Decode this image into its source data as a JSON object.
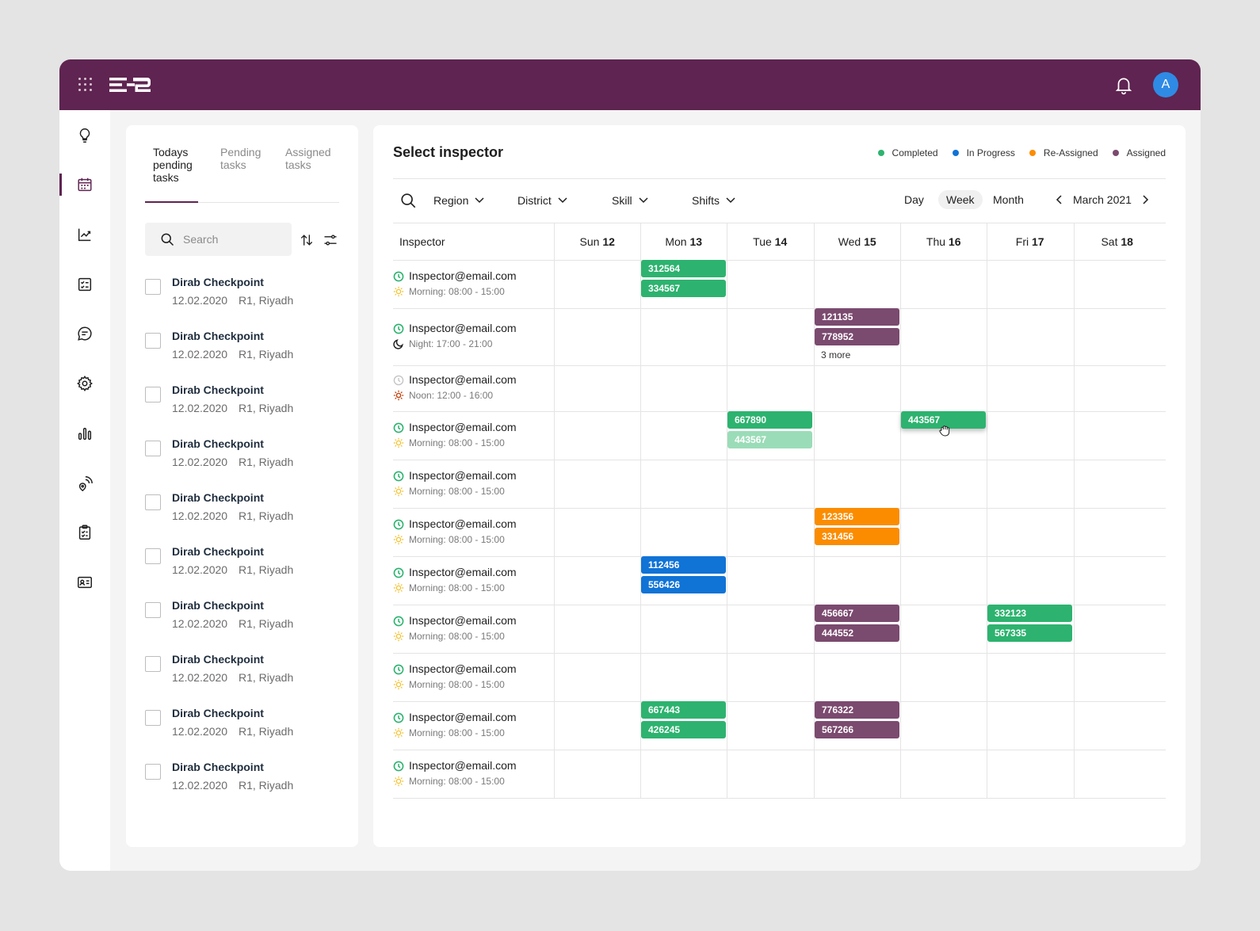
{
  "header": {
    "logo": "ERP",
    "avatar_initial": "A"
  },
  "sidebar": {
    "items": [
      {
        "name": "ideas",
        "icon": "lightbulb-icon"
      },
      {
        "name": "calendar",
        "icon": "calendar-icon",
        "active": true
      },
      {
        "name": "analytics",
        "icon": "trend-chart-icon"
      },
      {
        "name": "checklist",
        "icon": "checklist-icon"
      },
      {
        "name": "messages",
        "icon": "chat-icon"
      },
      {
        "name": "settings",
        "icon": "gear-icon"
      },
      {
        "name": "reports",
        "icon": "bar-chart-icon"
      },
      {
        "name": "tracking",
        "icon": "location-signal-icon"
      },
      {
        "name": "tasks",
        "icon": "clipboard-icon"
      },
      {
        "name": "id-cards",
        "icon": "id-card-icon"
      }
    ]
  },
  "left_panel": {
    "tabs": [
      {
        "label_lines": [
          "Todays",
          "pending",
          "tasks"
        ]
      },
      {
        "label_lines": [
          "Pending",
          "tasks"
        ]
      },
      {
        "label_lines": [
          "Assigned",
          "tasks"
        ]
      }
    ],
    "search_placeholder": "Search",
    "tasks": [
      {
        "title": "Dirab Checkpoint",
        "date": "12.02.2020",
        "location": "R1, Riyadh"
      },
      {
        "title": "Dirab Checkpoint",
        "date": "12.02.2020",
        "location": "R1, Riyadh"
      },
      {
        "title": "Dirab Checkpoint",
        "date": "12.02.2020",
        "location": "R1, Riyadh"
      },
      {
        "title": "Dirab Checkpoint",
        "date": "12.02.2020",
        "location": "R1, Riyadh"
      },
      {
        "title": "Dirab Checkpoint",
        "date": "12.02.2020",
        "location": "R1, Riyadh"
      },
      {
        "title": "Dirab Checkpoint",
        "date": "12.02.2020",
        "location": "R1, Riyadh"
      },
      {
        "title": "Dirab Checkpoint",
        "date": "12.02.2020",
        "location": "R1, Riyadh"
      },
      {
        "title": "Dirab Checkpoint",
        "date": "12.02.2020",
        "location": "R1, Riyadh"
      },
      {
        "title": "Dirab Checkpoint",
        "date": "12.02.2020",
        "location": "R1, Riyadh"
      },
      {
        "title": "Dirab Checkpoint",
        "date": "12.02.2020",
        "location": "R1, Riyadh"
      }
    ]
  },
  "main": {
    "title": "Select inspector",
    "legend": [
      {
        "label": "Completed",
        "color": "#2db36f"
      },
      {
        "label": "In Progress",
        "color": "#1073d6"
      },
      {
        "label": "Re-Assigned",
        "color": "#fb8c00"
      },
      {
        "label": "Assigned",
        "color": "#7b4a6f"
      }
    ],
    "filters": {
      "region": "Region",
      "district": "District",
      "skill": "Skill",
      "shifts": "Shifts"
    },
    "views": {
      "day": "Day",
      "week": "Week",
      "month": "Month",
      "active": "Week"
    },
    "period": "March 2021",
    "columns": {
      "inspector": "Inspector",
      "days": [
        {
          "name": "Sun",
          "num": "12"
        },
        {
          "name": "Mon",
          "num": "13"
        },
        {
          "name": "Tue",
          "num": "14"
        },
        {
          "name": "Wed",
          "num": "15"
        },
        {
          "name": "Thu",
          "num": "16"
        },
        {
          "name": "Fri",
          "num": "17"
        },
        {
          "name": "Sat",
          "num": "18"
        }
      ]
    },
    "rows": [
      {
        "email": "Inspector@email.com",
        "status": "active",
        "shift_icon": "sun-icon",
        "shift": "Morning: 08:00 - 15:00",
        "cells": {
          "1": [
            {
              "id": "312564",
              "status": "completed"
            },
            {
              "id": "334567",
              "status": "completed"
            }
          ]
        }
      },
      {
        "email": "Inspector@email.com",
        "status": "active",
        "shift_icon": "moon-icon",
        "shift": "Night: 17:00 - 21:00",
        "cells": {
          "3": [
            {
              "id": "121135",
              "status": "assigned"
            },
            {
              "id": "778952",
              "status": "assigned"
            }
          ]
        },
        "more": {
          "day": 3,
          "label": "3 more"
        }
      },
      {
        "email": "Inspector@email.com",
        "status": "inactive",
        "shift_icon": "noon-sun-icon",
        "shift": "Noon: 12:00 - 16:00",
        "cells": {}
      },
      {
        "email": "Inspector@email.com",
        "status": "active",
        "shift_icon": "sun-icon",
        "shift": "Morning: 08:00 - 15:00",
        "cells": {
          "2": [
            {
              "id": "667890",
              "status": "completed"
            },
            {
              "id": "443567",
              "status": "ghost"
            }
          ],
          "4": [
            {
              "id": "443567",
              "status": "completed",
              "dragging": true
            }
          ]
        }
      },
      {
        "email": "Inspector@email.com",
        "status": "active",
        "shift_icon": "sun-icon",
        "shift": "Morning: 08:00 - 15:00",
        "cells": {}
      },
      {
        "email": "Inspector@email.com",
        "status": "active",
        "shift_icon": "sun-icon",
        "shift": "Morning: 08:00 - 15:00",
        "cells": {
          "3": [
            {
              "id": "123356",
              "status": "reassigned"
            },
            {
              "id": "331456",
              "status": "reassigned"
            }
          ]
        }
      },
      {
        "email": "Inspector@email.com",
        "status": "active",
        "shift_icon": "sun-icon",
        "shift": "Morning: 08:00 - 15:00",
        "cells": {
          "1": [
            {
              "id": "112456",
              "status": "progress"
            },
            {
              "id": "556426",
              "status": "progress"
            }
          ]
        }
      },
      {
        "email": "Inspector@email.com",
        "status": "active",
        "shift_icon": "sun-icon",
        "shift": "Morning: 08:00 - 15:00",
        "cells": {
          "3": [
            {
              "id": "456667",
              "status": "assigned"
            },
            {
              "id": "444552",
              "status": "assigned"
            }
          ],
          "5": [
            {
              "id": "332123",
              "status": "completed"
            },
            {
              "id": "567335",
              "status": "completed"
            }
          ]
        }
      },
      {
        "email": "Inspector@email.com",
        "status": "active",
        "shift_icon": "sun-icon",
        "shift": "Morning: 08:00 - 15:00",
        "cells": {}
      },
      {
        "email": "Inspector@email.com",
        "status": "active",
        "shift_icon": "sun-icon",
        "shift": "Morning: 08:00 - 15:00",
        "cells": {
          "1": [
            {
              "id": "667443",
              "status": "completed"
            },
            {
              "id": "426245",
              "status": "completed"
            }
          ],
          "3": [
            {
              "id": "776322",
              "status": "assigned"
            },
            {
              "id": "567266",
              "status": "assigned"
            }
          ]
        }
      },
      {
        "email": "Inspector@email.com",
        "status": "active",
        "shift_icon": "sun-icon",
        "shift": "Morning: 08:00 - 15:00",
        "cells": {}
      }
    ]
  }
}
